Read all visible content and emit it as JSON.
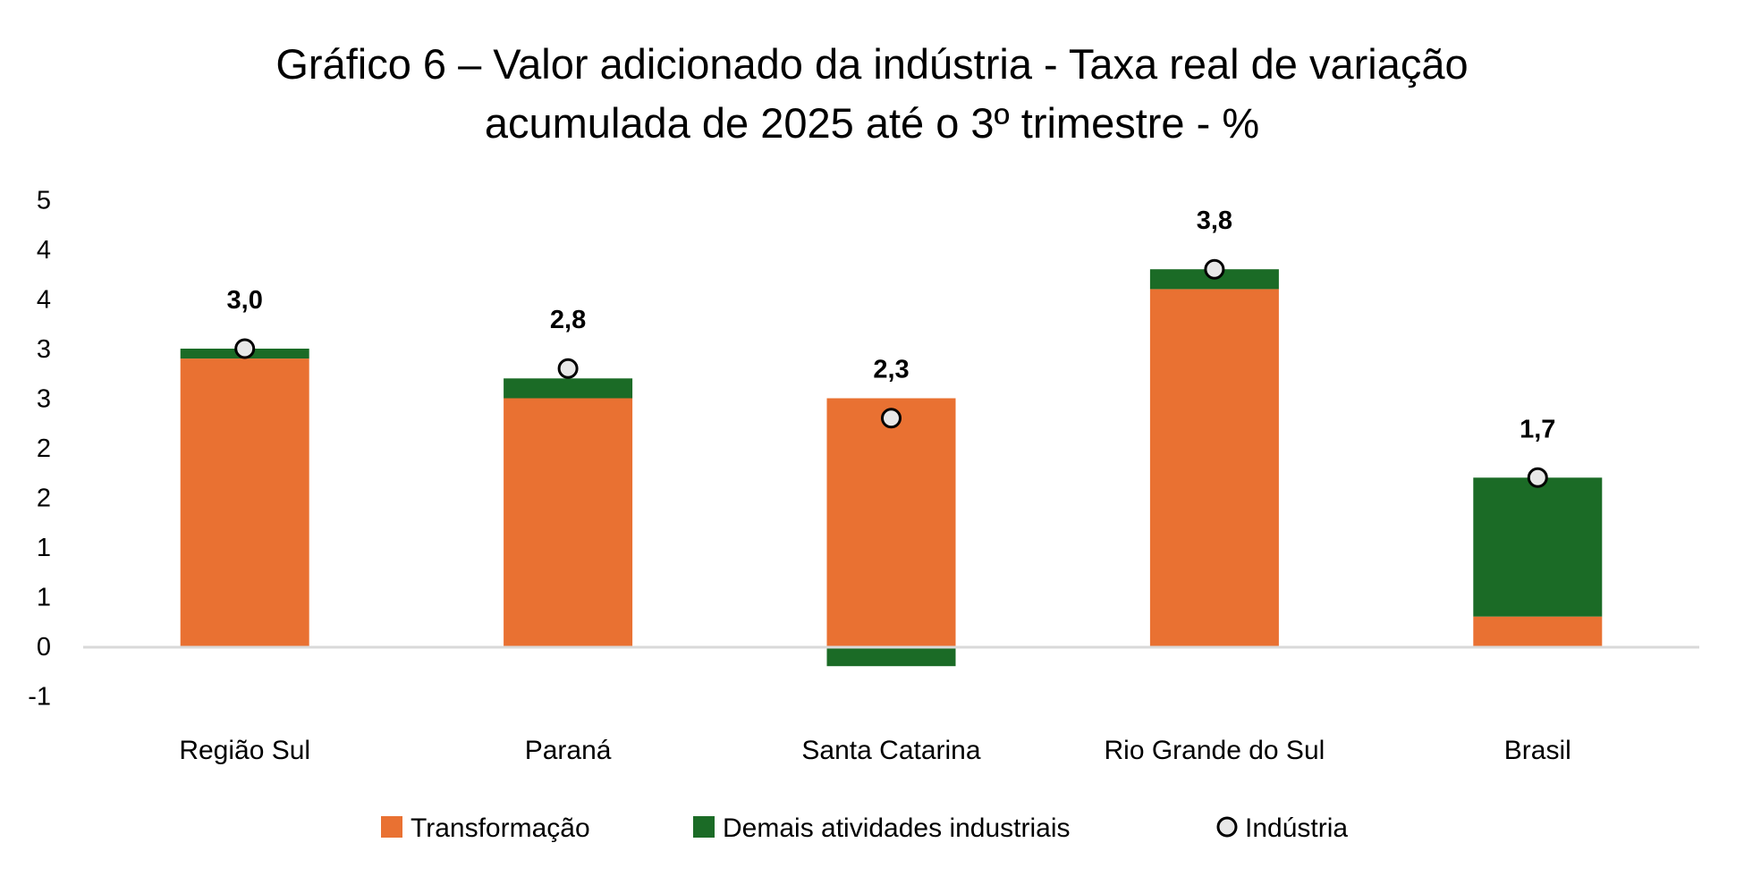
{
  "chart_data": {
    "type": "bar",
    "stacked": true,
    "title": "Gráfico 6 – Valor adicionado da indústria - Taxa real de variação acumulada de 2025 até o 3º trimestre - %",
    "title_lines": [
      "Gráfico 6 – Valor adicionado da indústria - Taxa real de variação",
      "acumulada de 2025 até o 3º trimestre - %"
    ],
    "xlabel": "",
    "ylabel": "",
    "ylim": [
      -0.5,
      4.5
    ],
    "y_tick_values": [
      4.5,
      4,
      3.5,
      3,
      2.5,
      2,
      1.5,
      1,
      0.5,
      0,
      -0.5
    ],
    "y_tick_labels": [
      "5",
      "4",
      "4",
      "3",
      "3",
      "2",
      "2",
      "1",
      "1",
      "0",
      "-1"
    ],
    "grid": false,
    "legend_position": "bottom",
    "categories": [
      "Região Sul",
      "Paraná",
      "Santa Catarina",
      "Rio Grande do Sul",
      "Brasil"
    ],
    "series": [
      {
        "name": "Transformação",
        "kind": "bar",
        "color": "#E97132",
        "values": [
          2.9,
          2.5,
          2.5,
          3.6,
          0.3
        ]
      },
      {
        "name": "Demais atividades industriais",
        "kind": "bar",
        "color": "#1B6B26",
        "values": [
          0.1,
          0.2,
          -0.2,
          0.2,
          1.4
        ]
      },
      {
        "name": "Indústria",
        "kind": "marker",
        "color": "#E8E8E8",
        "stroke": "#000000",
        "values": [
          3.0,
          2.8,
          2.3,
          3.8,
          1.7
        ],
        "labels": [
          "3,0",
          "2,8",
          "2,3",
          "3,8",
          "1,7"
        ]
      }
    ],
    "axis_line_color": "#D9D9D9"
  }
}
